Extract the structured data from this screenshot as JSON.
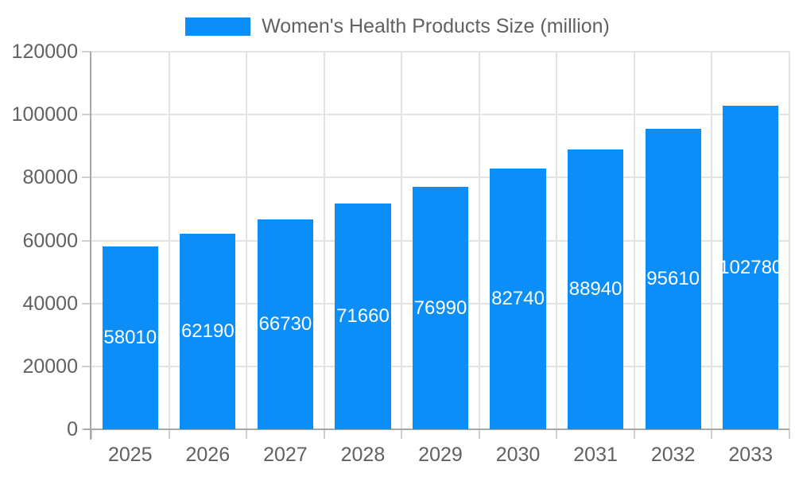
{
  "chart_data": {
    "type": "bar",
    "title": "Women's Health Products Size (million)",
    "legend": [
      "Women's Health Products Size (million)"
    ],
    "legend_position": "top",
    "categories": [
      "2025",
      "2026",
      "2027",
      "2028",
      "2029",
      "2030",
      "2031",
      "2032",
      "2033"
    ],
    "series": [
      {
        "name": "Women's Health Products Size (million)",
        "values": [
          58010,
          62190,
          66730,
          71660,
          76990,
          82740,
          88940,
          95610,
          102780
        ]
      }
    ],
    "value_labels": [
      "58010",
      "62190",
      "66730",
      "71660",
      "76990",
      "82740",
      "88940",
      "95610",
      "102780"
    ],
    "xlabel": "",
    "ylabel": "",
    "ylim": [
      0,
      120000
    ],
    "ytick_step": 20000,
    "yticks": [
      "0",
      "20000",
      "40000",
      "60000",
      "80000",
      "100000",
      "120000"
    ],
    "grid": true
  },
  "colors": {
    "bar": "#0b8ef8",
    "grid_line": "#e3e3e3",
    "tick_mark": "#d0d0d0",
    "axis_line": "#a8a8a8",
    "tick_text": "#616161",
    "legend_text": "#616161",
    "value_text": "#ffffff",
    "background": "#ffffff"
  }
}
